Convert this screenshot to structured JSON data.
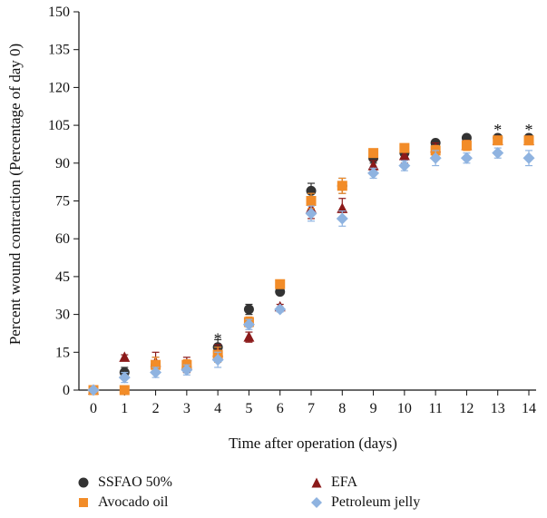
{
  "chart_data": {
    "type": "scatter",
    "xlabel": "Time after operation (days)",
    "ylabel": "Percent wound contraction (Percentage of day 0)",
    "xlim": [
      0,
      14
    ],
    "ylim": [
      0,
      150
    ],
    "x_ticks": [
      "0",
      "1",
      "2",
      "3",
      "4",
      "5",
      "6",
      "7",
      "8",
      "9",
      "10",
      "11",
      "12",
      "13",
      "14"
    ],
    "y_ticks": [
      "0",
      "15",
      "30",
      "45",
      "60",
      "75",
      "90",
      "105",
      "120",
      "135",
      "150"
    ],
    "x": [
      0,
      1,
      2,
      3,
      4,
      5,
      6,
      7,
      8,
      9,
      10,
      11,
      12,
      13,
      14
    ],
    "series": [
      {
        "name": "SSFAO 50%",
        "marker": "circle",
        "color": "#333333",
        "values": [
          0,
          7,
          10,
          9,
          17,
          32,
          39,
          79,
          81,
          92,
          94,
          98,
          100,
          100,
          100
        ],
        "errors": [
          0,
          2,
          3,
          2,
          3,
          2,
          1,
          3,
          3,
          2,
          2,
          1,
          1,
          1,
          1
        ]
      },
      {
        "name": "EFA",
        "marker": "triangle",
        "color": "#8b1a1a",
        "values": [
          0,
          13,
          11,
          10,
          15,
          21,
          33,
          72,
          72,
          89,
          93,
          96,
          97,
          99,
          99
        ],
        "errors": [
          0,
          1,
          4,
          3,
          3,
          2,
          1,
          4,
          4,
          2,
          3,
          2,
          2,
          1,
          1
        ]
      },
      {
        "name": "Avocado oil",
        "marker": "square",
        "color": "#f28c28",
        "values": [
          0,
          0,
          10,
          10,
          14,
          27,
          42,
          75,
          81,
          94,
          96,
          95,
          97,
          99,
          99
        ],
        "errors": [
          0,
          1,
          3,
          2,
          3,
          2,
          1,
          3,
          3,
          1,
          1,
          2,
          2,
          1,
          1
        ]
      },
      {
        "name": "Petroleum jelly",
        "marker": "diamond",
        "color": "#8fb3e0",
        "values": [
          0,
          5,
          7,
          8,
          12,
          26,
          32,
          70,
          68,
          86,
          89,
          92,
          92,
          94,
          92
        ],
        "errors": [
          0,
          2,
          2,
          2,
          3,
          2,
          1,
          3,
          3,
          2,
          2,
          3,
          2,
          2,
          3
        ]
      }
    ],
    "annotations": [
      {
        "text": "*",
        "x": 4,
        "y": 21
      },
      {
        "text": "*",
        "x": 13,
        "y": 104
      },
      {
        "text": "*",
        "x": 14,
        "y": 104
      }
    ],
    "grid": false,
    "legend_position": "bottom"
  }
}
